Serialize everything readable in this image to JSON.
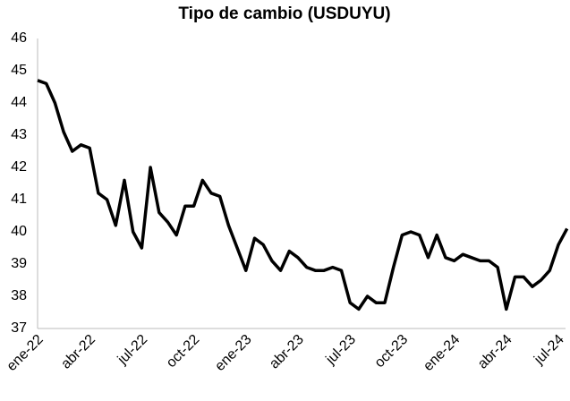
{
  "chart_data": {
    "type": "line",
    "title": "Tipo de cambio (USDUYU)",
    "categories": [
      "ene-22",
      null,
      null,
      null,
      null,
      null,
      "abr-22",
      null,
      null,
      null,
      null,
      null,
      "jul-22",
      null,
      null,
      null,
      null,
      null,
      "oct-22",
      null,
      null,
      null,
      null,
      null,
      "ene-23",
      null,
      null,
      null,
      null,
      null,
      "abr-23",
      null,
      null,
      null,
      null,
      null,
      "jul-23",
      null,
      null,
      null,
      null,
      null,
      "oct-23",
      null,
      null,
      null,
      null,
      null,
      "ene-24",
      null,
      null,
      null,
      null,
      null,
      "abr-24",
      null,
      null,
      null,
      null,
      null,
      "jul-24",
      null
    ],
    "values": [
      44.7,
      44.6,
      44.0,
      43.1,
      42.5,
      42.7,
      42.6,
      41.2,
      41.0,
      40.2,
      41.6,
      40.0,
      39.5,
      42.0,
      40.6,
      40.3,
      39.9,
      40.8,
      40.8,
      41.6,
      41.2,
      41.1,
      40.2,
      39.5,
      38.8,
      39.8,
      39.6,
      39.1,
      38.8,
      39.4,
      39.2,
      38.9,
      38.8,
      38.8,
      38.9,
      38.8,
      37.8,
      37.6,
      38.0,
      37.8,
      37.8,
      38.9,
      39.9,
      40.0,
      39.9,
      39.2,
      39.9,
      39.2,
      39.1,
      39.3,
      39.2,
      39.1,
      39.1,
      38.9,
      37.6,
      38.6,
      38.6,
      38.3,
      38.5,
      38.8,
      39.6,
      40.1
    ],
    "color": "#000000",
    "ylim": [
      37,
      46
    ],
    "yticks": [
      37,
      38,
      39,
      40,
      41,
      42,
      43,
      44,
      45,
      46
    ],
    "grid": false
  }
}
